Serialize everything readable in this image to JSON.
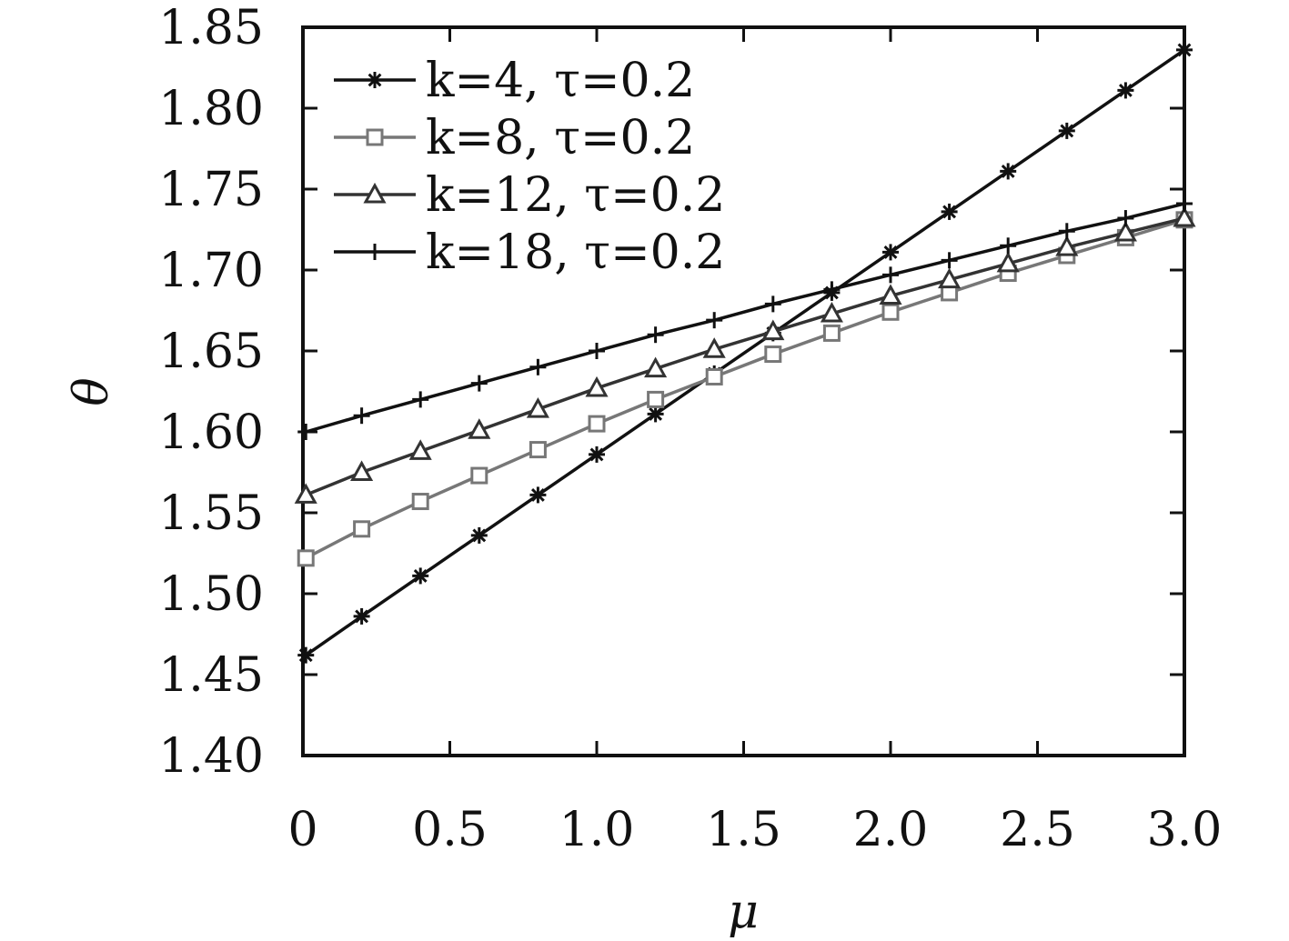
{
  "chart_data": {
    "type": "line",
    "xlabel": "μ",
    "ylabel": "θ",
    "xlim": [
      0,
      3.0
    ],
    "ylim": [
      1.4,
      1.85
    ],
    "xticks": [
      0,
      0.5,
      1.0,
      1.5,
      2.0,
      2.5,
      3.0
    ],
    "xtick_labels": [
      "0",
      "0.5",
      "1.0",
      "1.5",
      "2.0",
      "2.5",
      "3.0"
    ],
    "yticks": [
      1.4,
      1.45,
      1.5,
      1.55,
      1.6,
      1.65,
      1.7,
      1.75,
      1.8,
      1.85
    ],
    "ytick_labels": [
      "1.40",
      "1.45",
      "1.50",
      "1.55",
      "1.60",
      "1.65",
      "1.70",
      "1.75",
      "1.80",
      "1.85"
    ],
    "grid": false,
    "legend_position": "top-left",
    "x": [
      0.01,
      0.2,
      0.4,
      0.6,
      0.8,
      1.0,
      1.2,
      1.4,
      1.6,
      1.8,
      2.0,
      2.2,
      2.4,
      2.6,
      2.8,
      3.0
    ],
    "series": [
      {
        "name": "k=4, τ=0.2",
        "marker": "asterisk",
        "color": "#111111",
        "values": [
          1.462,
          1.486,
          1.511,
          1.536,
          1.561,
          1.586,
          1.611,
          1.636,
          1.661,
          1.686,
          1.711,
          1.736,
          1.761,
          1.786,
          1.811,
          1.836
        ]
      },
      {
        "name": "k=8, τ=0.2",
        "marker": "square",
        "color": "#777777",
        "values": [
          1.522,
          1.54,
          1.557,
          1.573,
          1.589,
          1.605,
          1.62,
          1.634,
          1.648,
          1.661,
          1.674,
          1.686,
          1.698,
          1.709,
          1.72,
          1.731
        ]
      },
      {
        "name": "k=12, τ=0.2",
        "marker": "triangle",
        "color": "#333333",
        "values": [
          1.561,
          1.575,
          1.588,
          1.601,
          1.614,
          1.627,
          1.639,
          1.651,
          1.662,
          1.673,
          1.684,
          1.694,
          1.704,
          1.714,
          1.723,
          1.732
        ]
      },
      {
        "name": "k=18, τ=0.2",
        "marker": "plus",
        "color": "#111111",
        "values": [
          1.6,
          1.61,
          1.62,
          1.63,
          1.64,
          1.65,
          1.66,
          1.669,
          1.679,
          1.688,
          1.697,
          1.706,
          1.715,
          1.724,
          1.732,
          1.741
        ]
      }
    ]
  }
}
